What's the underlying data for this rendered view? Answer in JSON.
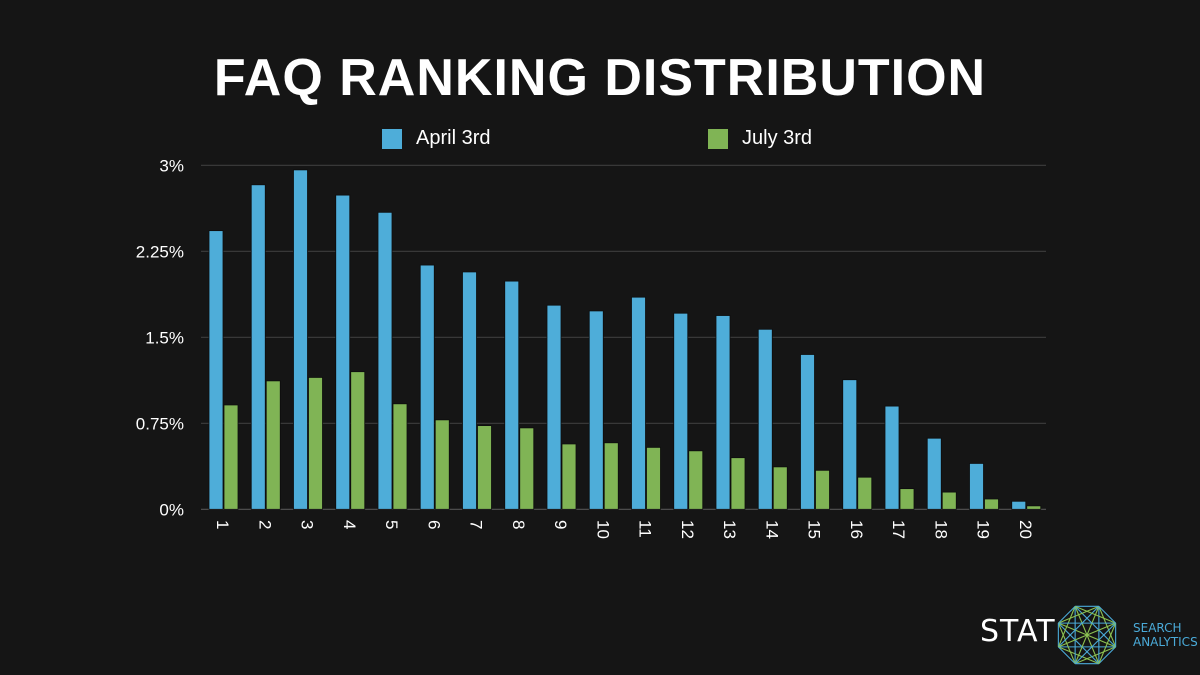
{
  "chart_data": {
    "type": "bar",
    "title": "FAQ RANKING DISTRIBUTION",
    "xlabel": "",
    "ylabel": "",
    "categories": [
      "1",
      "2",
      "3",
      "4",
      "5",
      "6",
      "7",
      "8",
      "9",
      "10",
      "11",
      "12",
      "13",
      "14",
      "15",
      "16",
      "17",
      "18",
      "19",
      "20"
    ],
    "series": [
      {
        "name": "April 3rd",
        "color": "#4eadd9",
        "values": [
          2.43,
          2.83,
          2.96,
          2.74,
          2.59,
          2.13,
          2.07,
          1.99,
          1.78,
          1.73,
          1.85,
          1.71,
          1.69,
          1.57,
          1.35,
          1.13,
          0.9,
          0.62,
          0.4,
          0.07
        ]
      },
      {
        "name": "July 3rd",
        "color": "#80b455",
        "values": [
          0.91,
          1.12,
          1.15,
          1.2,
          0.92,
          0.78,
          0.73,
          0.71,
          0.57,
          0.58,
          0.54,
          0.51,
          0.45,
          0.37,
          0.34,
          0.28,
          0.18,
          0.15,
          0.09,
          0.03
        ]
      }
    ],
    "ylim": [
      0,
      3
    ],
    "yticks": [
      0,
      0.75,
      1.5,
      2.25,
      3
    ],
    "ytick_labels": [
      "0%",
      "0.75%",
      "1.5%",
      "2.25%",
      "3%"
    ],
    "grid": true,
    "legend_position": "top"
  },
  "logo": {
    "text": "STAT",
    "subtitle_line1": "SEARCH",
    "subtitle_line2": "ANALYTICS"
  }
}
